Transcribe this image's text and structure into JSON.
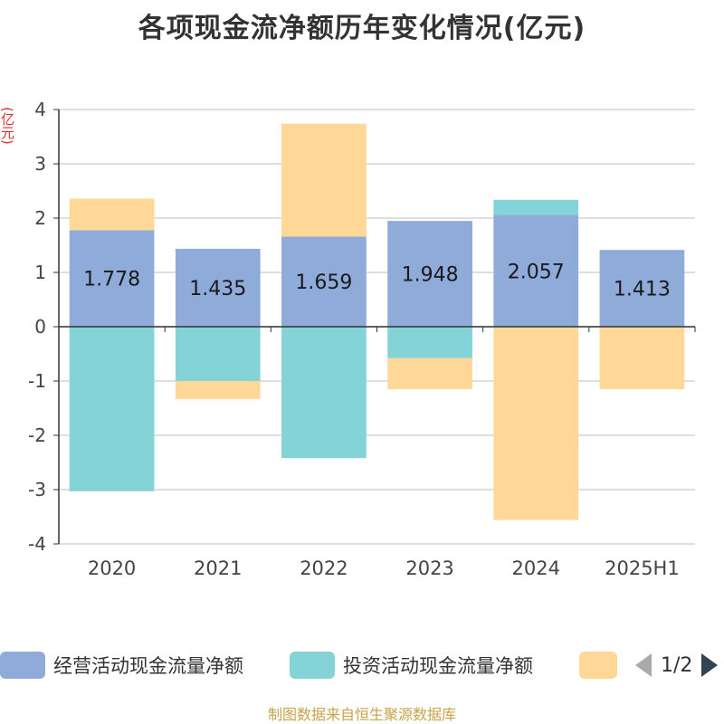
{
  "title": "各项现金流净额历年变化情况(亿元)",
  "unit": "(亿元)",
  "source": "制图数据来自恒生聚源数据库",
  "legend": {
    "items": [
      {
        "name": "经营活动现金流量净额",
        "color": "#8eabd9"
      },
      {
        "name": "投资活动现金流量净额",
        "color": "#84d3d6"
      },
      {
        "name": "",
        "color": "#ffd898"
      }
    ],
    "page": "1/2"
  },
  "chart_data": {
    "type": "bar",
    "stacked": true,
    "categories": [
      "2020",
      "2021",
      "2022",
      "2023",
      "2024",
      "2025H1"
    ],
    "series": [
      {
        "name": "经营活动现金流量净额",
        "color": "#8eabd9",
        "values": [
          1.778,
          1.435,
          1.659,
          1.948,
          2.057,
          1.413
        ],
        "labels": [
          "1.778",
          "1.435",
          "1.659",
          "1.948",
          "2.057",
          "1.413"
        ]
      },
      {
        "name": "投资活动现金流量净额",
        "color": "#84d3d6",
        "values": [
          -3.03,
          -1.0,
          -2.42,
          -0.58,
          0.28,
          0.0
        ]
      },
      {
        "name": "",
        "color": "#ffd898",
        "values": [
          0.58,
          -0.33,
          2.08,
          -0.57,
          -3.56,
          -1.15
        ]
      }
    ],
    "ylim": [
      -4,
      4
    ],
    "yticks": [
      4,
      3,
      2,
      1,
      0,
      -1,
      -2,
      -3,
      -4
    ],
    "grid": true
  }
}
